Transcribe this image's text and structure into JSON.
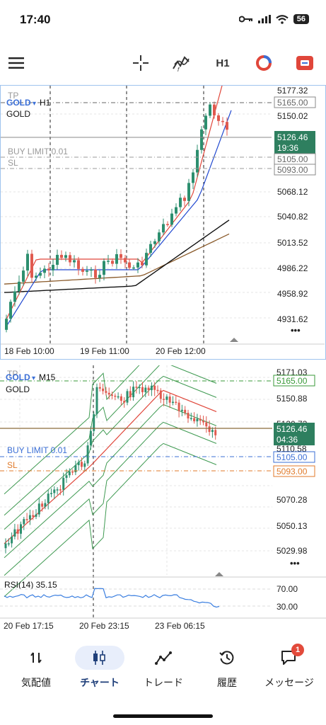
{
  "status_bar": {
    "time": "17:40",
    "battery": "56"
  },
  "toolbar": {
    "timeframe": "H1"
  },
  "chart1": {
    "tp_label": "TP",
    "symbol_tag": "GOLD",
    "timeframe": "H1",
    "symbol_name": "GOLD",
    "buy_limit_label": "BUY LIMIT 0.01",
    "sl_label": "SL",
    "price_labels": [
      "5177.32",
      "5150.02",
      "5068.12",
      "5040.82",
      "5013.52",
      "4986.22",
      "4958.92",
      "4931.62"
    ],
    "tp_price": "5165.00",
    "current_price": "5126.46",
    "countdown": "19:36",
    "buy_limit_price": "5105.00",
    "sl_price": "5093.00",
    "time_labels": [
      "18 Feb 10:00",
      "19 Feb 11:00",
      "20 Feb 12:00"
    ],
    "more": "•••"
  },
  "chart2": {
    "tp_label": "TP",
    "symbol_tag": "GOLD",
    "timeframe": "M15",
    "symbol_name": "GOLD",
    "buy_limit_label": "BUY LIMIT 0.01",
    "sl_label": "SL",
    "price_labels": [
      "5171.03",
      "5150.88",
      "5130.73",
      "5110.58",
      "5070.28",
      "5050.13",
      "5029.98"
    ],
    "tp_price": "5165.00",
    "current_price": "5126.46",
    "countdown": "04:36",
    "buy_limit_price": "5105.00",
    "sl_price": "5093.00",
    "rsi_label": "RSI(14) 35.15",
    "rsi_levels": [
      "70.00",
      "30.00"
    ],
    "time_labels": [
      "20 Feb 17:15",
      "20 Feb 23:15",
      "23 Feb 06:15"
    ],
    "more": "•••"
  },
  "colors": {
    "bull": "#2d8f6f",
    "bear": "#e05a4f",
    "tp": "#3a9a3a",
    "sl": "#e07a2a",
    "buy_limit": "#3b6fd6",
    "accent": "#1f3f7a"
  },
  "nav": {
    "items": [
      {
        "label": "気配値",
        "icon": "quotes-icon"
      },
      {
        "label": "チャート",
        "icon": "chart-icon"
      },
      {
        "label": "トレード",
        "icon": "trade-icon"
      },
      {
        "label": "履歴",
        "icon": "history-icon"
      },
      {
        "label": "メッセージ",
        "icon": "messages-icon"
      }
    ],
    "messages_badge": "1"
  }
}
